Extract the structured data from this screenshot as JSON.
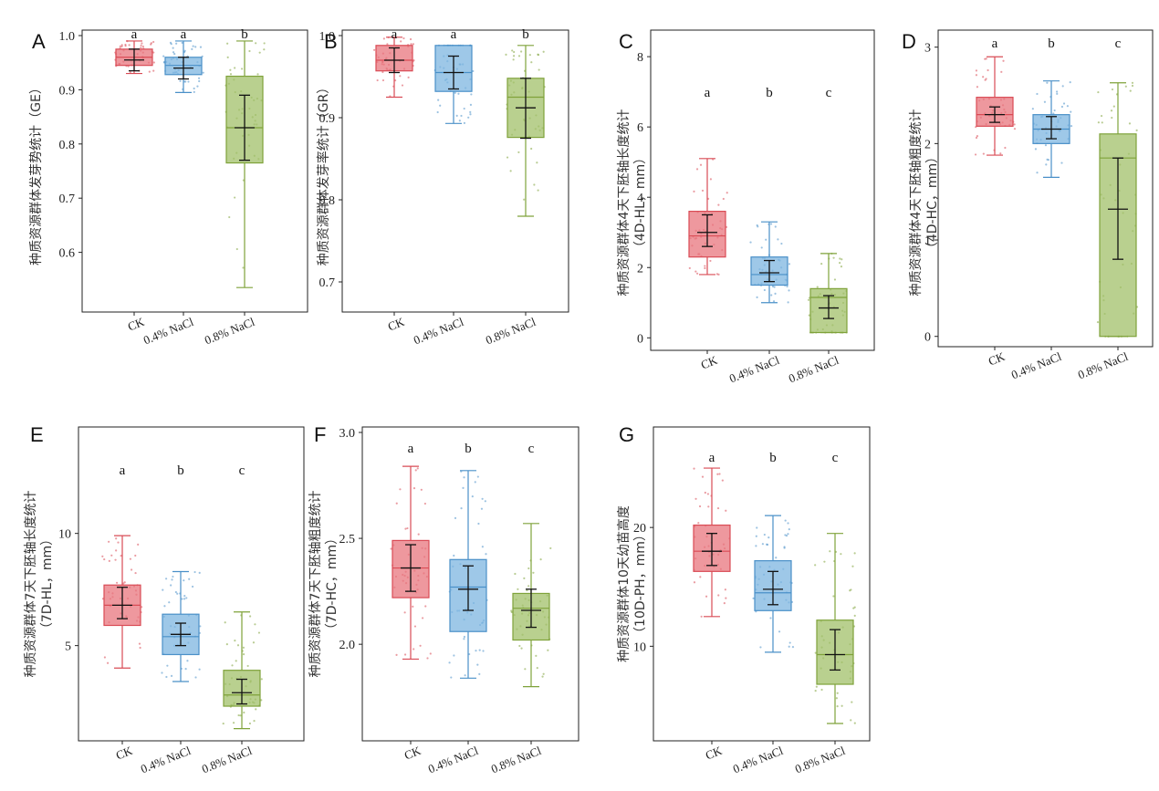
{
  "categories": [
    "CK",
    "0.4% NaCl",
    "0.8% NaCl"
  ],
  "colors": {
    "CK": "#d94b55",
    "0.4% NaCl": "#4a90c8",
    "0.8% NaCl": "#7fa23a",
    "CK_fill": "#e8767d",
    "0.4% NaCl_fill": "#7db5e0",
    "0.8% NaCl_fill": "#a2c06a"
  },
  "chart_data": [
    {
      "panel": "A",
      "type": "box",
      "ylabel": "种质资源群体发芽势统计（GE）",
      "ylim": [
        0.5,
        1.0
      ],
      "yticks": [
        0.6,
        0.7,
        0.8,
        0.9,
        1.0
      ],
      "ytick_labels": [
        "0.6",
        "0.7",
        "0.8",
        "0.9",
        "1.0"
      ],
      "letters": [
        "a",
        "a",
        "b"
      ],
      "boxes": [
        {
          "whisker_low": 0.93,
          "q1": 0.945,
          "median": 0.96,
          "q3": 0.975,
          "whisker_high": 0.99,
          "mean": 0.955,
          "ci_low": 0.935,
          "ci_high": 0.975
        },
        {
          "whisker_low": 0.895,
          "q1": 0.928,
          "median": 0.945,
          "q3": 0.96,
          "whisker_high": 0.99,
          "mean": 0.94,
          "ci_low": 0.92,
          "ci_high": 0.96
        },
        {
          "whisker_low": 0.535,
          "q1": 0.765,
          "median": 0.83,
          "q3": 0.925,
          "whisker_high": 0.99,
          "mean": 0.83,
          "ci_low": 0.77,
          "ci_high": 0.89
        }
      ]
    },
    {
      "panel": "B",
      "type": "box",
      "ylabel": "种质资源群体发芽率统计（GR）",
      "ylim": [
        0.67,
        1.0
      ],
      "yticks": [
        0.7,
        0.8,
        0.9,
        1.0
      ],
      "ytick_labels": [
        "0.7",
        "0.8",
        "0.9",
        "1.0"
      ],
      "letters": [
        "a",
        "a",
        "b"
      ],
      "boxes": [
        {
          "whisker_low": 0.925,
          "q1": 0.957,
          "median": 0.97,
          "q3": 0.988,
          "whisker_high": 0.998,
          "mean": 0.97,
          "ci_low": 0.955,
          "ci_high": 0.985
        },
        {
          "whisker_low": 0.893,
          "q1": 0.932,
          "median": 0.955,
          "q3": 0.988,
          "whisker_high": 0.988,
          "mean": 0.955,
          "ci_low": 0.935,
          "ci_high": 0.975
        },
        {
          "whisker_low": 0.78,
          "q1": 0.876,
          "median": 0.925,
          "q3": 0.948,
          "whisker_high": 0.988,
          "mean": 0.912,
          "ci_low": 0.875,
          "ci_high": 0.948
        }
      ]
    },
    {
      "panel": "C",
      "type": "box",
      "ylabel": "种质资源群体4天下胚轴长度统计",
      "ylabel2": "（4D-HL，mm）",
      "ylim": [
        -0.2,
        8.6
      ],
      "yticks": [
        0,
        2,
        4,
        6,
        8
      ],
      "ytick_labels": [
        "0",
        "2",
        "4",
        "6",
        "8"
      ],
      "letters": [
        "a",
        "b",
        "c"
      ],
      "boxes": [
        {
          "whisker_low": 1.8,
          "q1": 2.3,
          "median": 2.9,
          "q3": 3.6,
          "whisker_high": 5.1,
          "mean": 3.0,
          "ci_low": 2.6,
          "ci_high": 3.5
        },
        {
          "whisker_low": 1.0,
          "q1": 1.5,
          "median": 1.8,
          "q3": 2.3,
          "whisker_high": 3.3,
          "mean": 1.85,
          "ci_low": 1.6,
          "ci_high": 2.2
        },
        {
          "whisker_low": 0.15,
          "q1": 0.15,
          "median": 1.15,
          "q3": 1.4,
          "whisker_high": 2.4,
          "mean": 0.85,
          "ci_low": 0.55,
          "ci_high": 1.2
        }
      ]
    },
    {
      "panel": "D",
      "type": "box",
      "ylabel": "种质资源群体4天下胚轴粗度统计",
      "ylabel2": "（4D-HC，mm）",
      "ylim": [
        -0.05,
        3.12
      ],
      "yticks": [
        0,
        1,
        2,
        3
      ],
      "ytick_labels": [
        "0",
        "1",
        "2",
        "3"
      ],
      "letters": [
        "a",
        "b",
        "c"
      ],
      "boxes": [
        {
          "whisker_low": 1.88,
          "q1": 2.18,
          "median": 2.3,
          "q3": 2.48,
          "whisker_high": 2.9,
          "mean": 2.3,
          "ci_low": 2.22,
          "ci_high": 2.38
        },
        {
          "whisker_low": 1.65,
          "q1": 2.0,
          "median": 2.15,
          "q3": 2.3,
          "whisker_high": 2.65,
          "mean": 2.15,
          "ci_low": 2.05,
          "ci_high": 2.28
        },
        {
          "whisker_low": 0.0,
          "q1": 0.0,
          "median": 1.85,
          "q3": 2.1,
          "whisker_high": 2.63,
          "mean": 1.32,
          "ci_low": 0.8,
          "ci_high": 1.85
        }
      ]
    },
    {
      "panel": "E",
      "type": "box",
      "ylabel": "种质资源群体7天下胚轴长度统计",
      "ylabel2": "（7D-HL，mm）",
      "ylim": [
        1.0,
        14.5
      ],
      "yticks": [
        5,
        10
      ],
      "ytick_labels": [
        "5",
        "10"
      ],
      "letters": [
        "a",
        "b",
        "c"
      ],
      "boxes": [
        {
          "whisker_low": 4.0,
          "q1": 5.9,
          "median": 6.8,
          "q3": 7.7,
          "whisker_high": 9.9,
          "mean": 6.8,
          "ci_low": 6.2,
          "ci_high": 7.6
        },
        {
          "whisker_low": 3.4,
          "q1": 4.6,
          "median": 5.4,
          "q3": 6.4,
          "whisker_high": 8.3,
          "mean": 5.5,
          "ci_low": 5.0,
          "ci_high": 6.0
        },
        {
          "whisker_low": 1.3,
          "q1": 2.3,
          "median": 2.8,
          "q3": 3.9,
          "whisker_high": 6.5,
          "mean": 2.9,
          "ci_low": 2.4,
          "ci_high": 3.5
        }
      ]
    },
    {
      "panel": "F",
      "type": "box",
      "ylabel": "种质资源群体7天下胚轴粗度统计",
      "ylabel2": "（7D-HC，mm）",
      "ylim": [
        1.57,
        3.0
      ],
      "yticks": [
        2.0,
        2.5,
        3.0
      ],
      "ytick_labels": [
        "2.0",
        "2.5",
        "3.0"
      ],
      "letters": [
        "a",
        "b",
        "c"
      ],
      "boxes": [
        {
          "whisker_low": 1.93,
          "q1": 2.22,
          "median": 2.36,
          "q3": 2.49,
          "whisker_high": 2.84,
          "mean": 2.36,
          "ci_low": 2.25,
          "ci_high": 2.47
        },
        {
          "whisker_low": 1.84,
          "q1": 2.06,
          "median": 2.27,
          "q3": 2.4,
          "whisker_high": 2.82,
          "mean": 2.26,
          "ci_low": 2.16,
          "ci_high": 2.37
        },
        {
          "whisker_low": 1.8,
          "q1": 2.02,
          "median": 2.17,
          "q3": 2.24,
          "whisker_high": 2.57,
          "mean": 2.16,
          "ci_low": 2.08,
          "ci_high": 2.26
        }
      ]
    },
    {
      "panel": "G",
      "type": "box",
      "ylabel": "种质资源群体10天幼苗高度",
      "ylabel2": "（10D-PH，mm）",
      "ylim": [
        2.5,
        28.0
      ],
      "yticks": [
        10,
        20
      ],
      "ytick_labels": [
        "10",
        "20"
      ],
      "letters": [
        "a",
        "b",
        "c"
      ],
      "boxes": [
        {
          "whisker_low": 12.5,
          "q1": 16.3,
          "median": 18.0,
          "q3": 20.2,
          "whisker_high": 25.0,
          "mean": 18.0,
          "ci_low": 16.8,
          "ci_high": 19.5
        },
        {
          "whisker_low": 9.5,
          "q1": 13.0,
          "median": 14.5,
          "q3": 17.2,
          "whisker_high": 21.0,
          "mean": 14.8,
          "ci_low": 13.5,
          "ci_high": 16.3
        },
        {
          "whisker_low": 3.5,
          "q1": 6.8,
          "median": 9.3,
          "q3": 12.2,
          "whisker_high": 19.5,
          "mean": 9.3,
          "ci_low": 8.0,
          "ci_high": 11.4
        }
      ]
    }
  ]
}
